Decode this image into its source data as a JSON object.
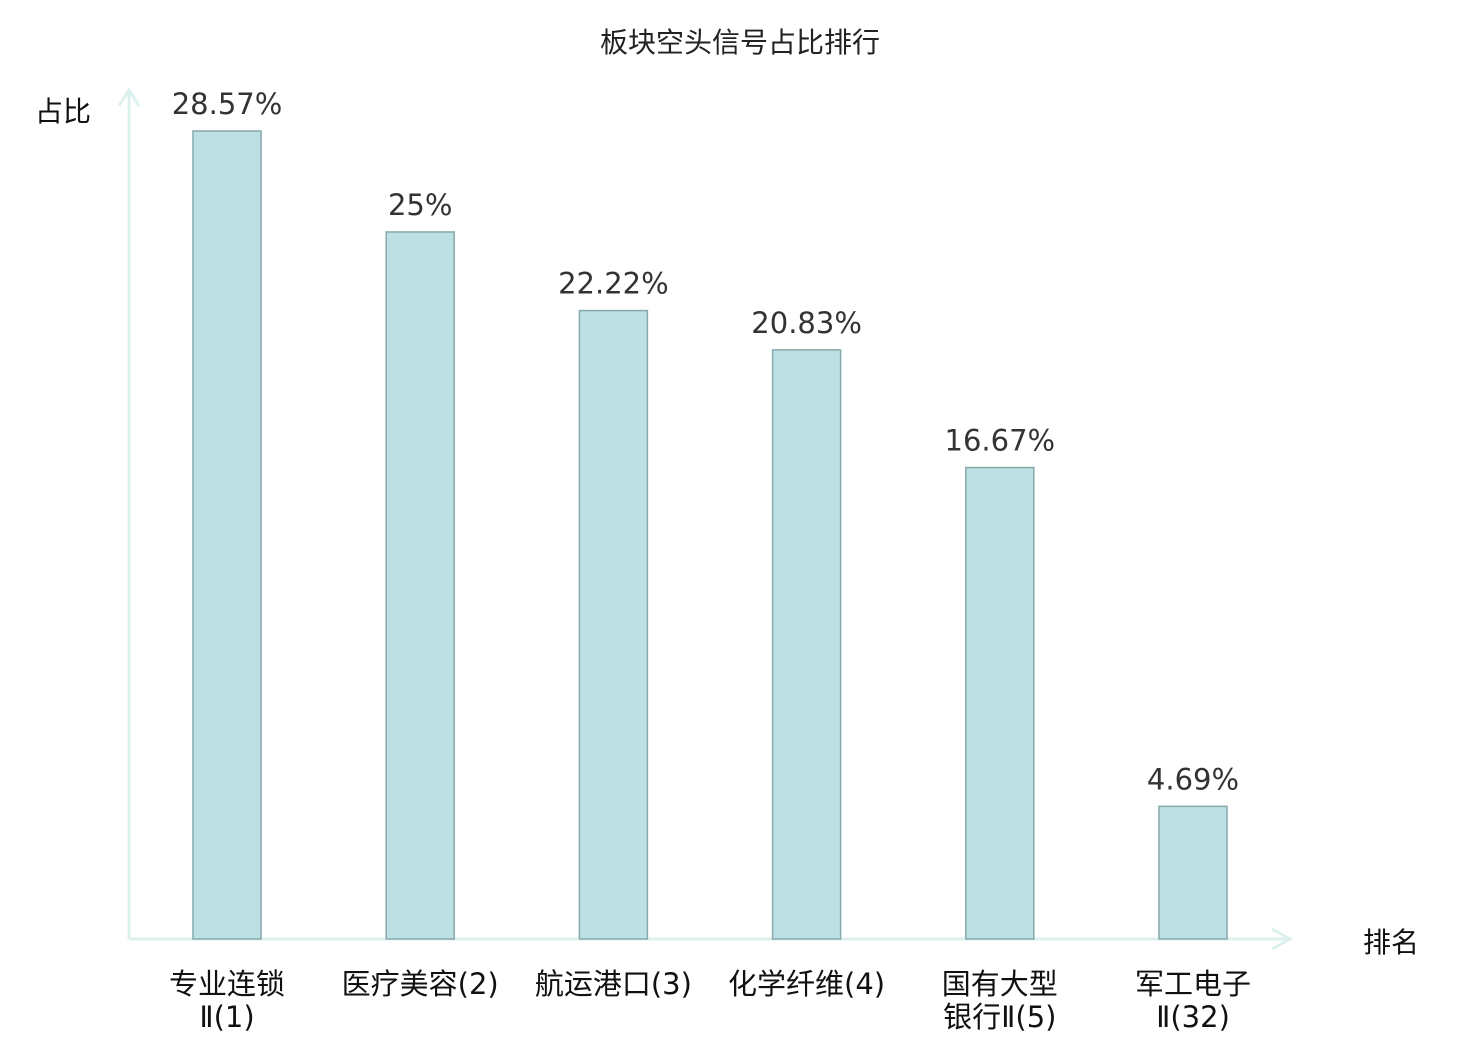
{
  "chart_data": {
    "type": "bar",
    "title": "板块空头信号占比排行",
    "ylabel": "占比",
    "xlabel": "排名",
    "categories": [
      "专业连锁\nⅡ(1)",
      "医疗美容(2)",
      "航运港口(3)",
      "化学纤维(4)",
      "国有大型\n银行Ⅱ(5)",
      "军工电子\nⅡ(32)"
    ],
    "values": [
      28.57,
      25,
      22.22,
      20.83,
      16.67,
      4.69
    ],
    "data_labels": [
      "28.57%",
      "25%",
      "22.22%",
      "20.83%",
      "16.67%",
      "4.69%"
    ],
    "highlight_index": 5,
    "ylim": [
      0,
      28.57
    ],
    "grid": false,
    "legend": "none",
    "colors": {
      "bar_fill": "#bce0e3",
      "bar_stroke": "#86a9aa",
      "axis": "#dcf1ee",
      "highlight_label": "#ee1111",
      "text": "#222222"
    }
  }
}
